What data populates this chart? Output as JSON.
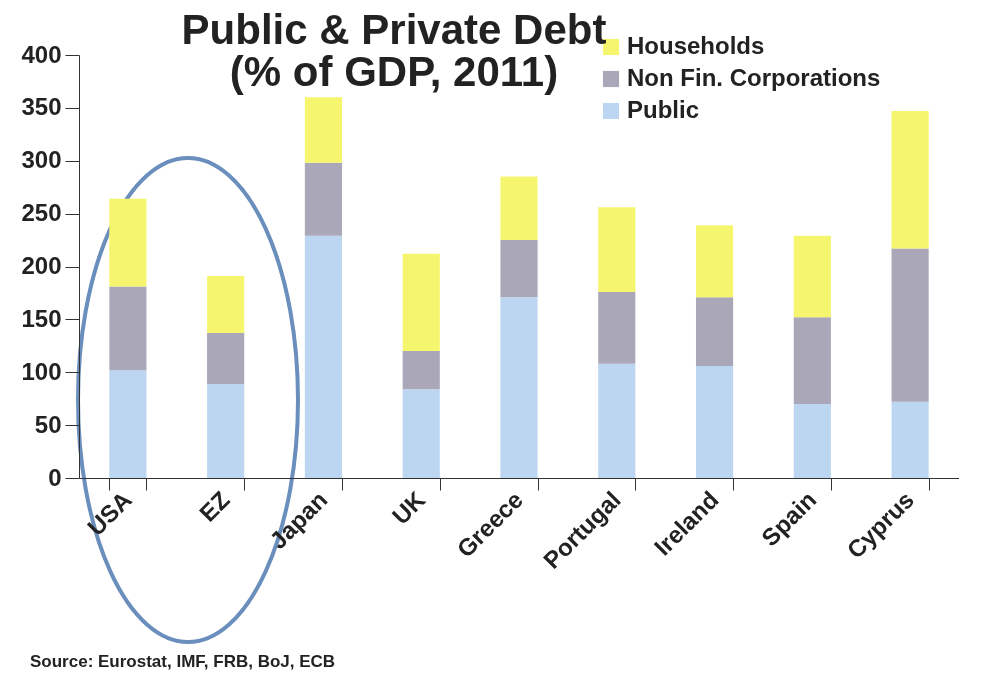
{
  "chart_data": {
    "type": "bar",
    "title": "Public & Private Debt",
    "subtitle": "(% of GDP, 2011)",
    "categories": [
      "USA",
      "EZ",
      "Japan",
      "UK",
      "Greece",
      "Portugal",
      "Ireland",
      "Spain",
      "Cyprus"
    ],
    "stacked": true,
    "series": [
      {
        "name": "Public",
        "color": "#bcd6f2",
        "values": [
          102,
          89,
          229,
          84,
          171,
          108,
          106,
          70,
          72
        ]
      },
      {
        "name": "Non Fin. Corporations",
        "color": "#aaa7b9",
        "values": [
          79,
          48,
          69,
          36,
          54,
          68,
          65,
          82,
          145
        ]
      },
      {
        "name": "Households",
        "color": "#f6f66e",
        "values": [
          83,
          54,
          62,
          92,
          60,
          80,
          68,
          77,
          130
        ]
      }
    ],
    "ylim": [
      0,
      400
    ],
    "yticks": [
      0,
      50,
      100,
      150,
      200,
      250,
      300,
      350,
      400
    ],
    "grid": false,
    "legend": "top right",
    "annotations": [
      "Source: Eurostat, IMF, FRB, BoJ, ECB"
    ]
  }
}
